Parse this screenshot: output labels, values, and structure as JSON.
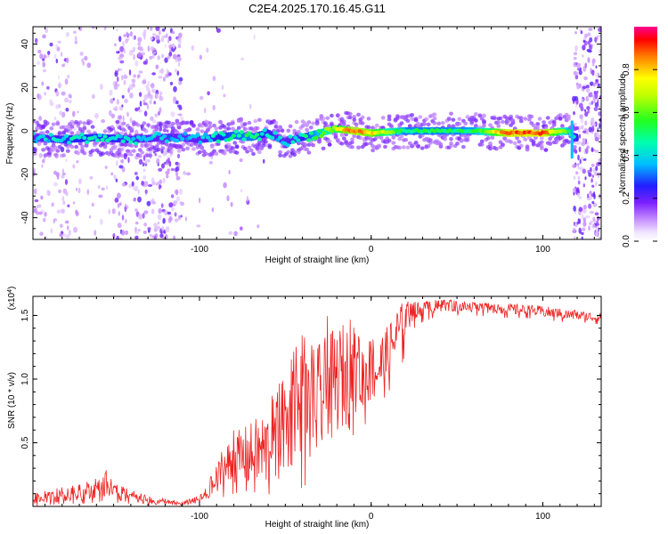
{
  "title": "C2E4.2025.170.16.45.G11",
  "chart_data": [
    {
      "type": "heatmap",
      "xlabel": "Height of straight line (km)",
      "ylabel": "Frequency (Hz)",
      "xlim": [
        -197,
        134
      ],
      "ylim": [
        -50,
        48
      ],
      "x_ticks": [
        -100,
        0,
        100
      ],
      "x_tick_labels": [
        "-100",
        "0",
        "100"
      ],
      "y_ticks": [
        -40,
        -20,
        0,
        20,
        40
      ],
      "y_tick_labels": [
        "-40",
        "-20",
        "0",
        "20",
        "40"
      ],
      "grid": false,
      "colorbar": {
        "label": "Normalized spectral amplitude",
        "range": [
          0,
          1
        ],
        "ticks": [
          0.0,
          0.2,
          0.4,
          0.6,
          0.8
        ],
        "tick_labels": [
          "0.0",
          "0.2",
          "0.4",
          "0.6",
          "0.8"
        ],
        "colors": [
          "#ffffff",
          "#e8d4ff",
          "#9b30ff",
          "#3010ff",
          "#00ccff",
          "#00ff80",
          "#a0ff00",
          "#ffff00",
          "#ff8000",
          "#ff0000",
          "#ff0080"
        ]
      },
      "ridge": {
        "x": [
          -197,
          -180,
          -160,
          -140,
          -120,
          -110,
          -100,
          -90,
          -80,
          -70,
          -60,
          -50,
          -40,
          -30,
          -20,
          -10,
          0,
          20,
          40,
          60,
          80,
          100,
          115,
          118
        ],
        "y": [
          -3,
          -4,
          -3,
          -4,
          -3,
          -3,
          -4,
          -3,
          -2,
          -3,
          -1,
          -5,
          -3,
          -1,
          1,
          0,
          -1,
          0,
          0,
          0,
          -1,
          -1,
          0,
          -3
        ],
        "amplitude": [
          0.38,
          0.42,
          0.45,
          0.4,
          0.35,
          0.32,
          0.38,
          0.42,
          0.48,
          0.5,
          0.42,
          0.38,
          0.42,
          0.55,
          0.72,
          0.85,
          0.78,
          0.5,
          0.5,
          0.52,
          0.88,
          0.9,
          0.55,
          0.42
        ]
      }
    },
    {
      "type": "line",
      "xlabel": "Height of straight line (km)",
      "ylabel": "SNR (10 * v/v)",
      "y_scale_label": "(x10^4)",
      "y_scale_base": "(x10",
      "y_scale_exp": "4",
      "y_scale_end": ")",
      "xlim": [
        -197,
        134
      ],
      "ylim": [
        0,
        1.65
      ],
      "x_ticks": [
        -100,
        0,
        100
      ],
      "x_tick_labels": [
        "-100",
        "0",
        "100"
      ],
      "y_ticks": [
        0.5,
        1.0,
        1.5
      ],
      "y_tick_labels": [
        "0.5",
        "1.0",
        "1.5"
      ],
      "grid": false,
      "series": [
        {
          "color": "#ee2222",
          "x": [
            -197,
            -190,
            -180,
            -170,
            -160,
            -155,
            -150,
            -140,
            -130,
            -120,
            -110,
            -100,
            -95,
            -90,
            -85,
            -80,
            -75,
            -70,
            -65,
            -60,
            -55,
            -50,
            -45,
            -40,
            -35,
            -30,
            -25,
            -20,
            -15,
            -10,
            -5,
            0,
            5,
            10,
            15,
            20,
            25,
            30,
            40,
            50,
            60,
            70,
            80,
            90,
            100,
            110,
            120,
            134
          ],
          "y": [
            0.05,
            0.06,
            0.08,
            0.09,
            0.12,
            0.16,
            0.1,
            0.07,
            0.04,
            0.03,
            0.02,
            0.05,
            0.1,
            0.2,
            0.3,
            0.35,
            0.38,
            0.4,
            0.42,
            0.45,
            0.5,
            0.6,
            0.7,
            0.72,
            0.75,
            0.82,
            0.9,
            0.98,
            1.05,
            1.0,
            1.0,
            1.02,
            1.1,
            1.2,
            1.35,
            1.45,
            1.52,
            1.55,
            1.57,
            1.57,
            1.56,
            1.55,
            1.55,
            1.54,
            1.53,
            1.51,
            1.5,
            1.48
          ],
          "band_lo": [
            0.0,
            0.01,
            0.02,
            0.02,
            0.03,
            0.05,
            0.03,
            0.02,
            0.01,
            0.01,
            0.0,
            0.0,
            0.02,
            0.05,
            0.08,
            0.1,
            0.12,
            0.12,
            0.1,
            0.1,
            0.05,
            0.05,
            0.1,
            0.15,
            0.2,
            0.4,
            0.5,
            0.6,
            0.65,
            0.55,
            0.6,
            0.75,
            0.8,
            0.9,
            1.0,
            1.2,
            1.4,
            1.45,
            1.5,
            1.5,
            1.5,
            1.49,
            1.48,
            1.48,
            1.47,
            1.45,
            1.45,
            1.43
          ],
          "band_hi": [
            0.1,
            0.12,
            0.15,
            0.17,
            0.22,
            0.3,
            0.18,
            0.13,
            0.08,
            0.06,
            0.04,
            0.08,
            0.18,
            0.35,
            0.48,
            0.6,
            0.65,
            0.7,
            0.78,
            0.8,
            0.95,
            1.0,
            1.22,
            1.35,
            1.25,
            1.45,
            1.5,
            1.55,
            1.55,
            1.4,
            1.28,
            1.3,
            1.35,
            1.4,
            1.5,
            1.58,
            1.6,
            1.6,
            1.62,
            1.62,
            1.6,
            1.59,
            1.58,
            1.58,
            1.57,
            1.55,
            1.54,
            1.52
          ]
        }
      ]
    }
  ]
}
